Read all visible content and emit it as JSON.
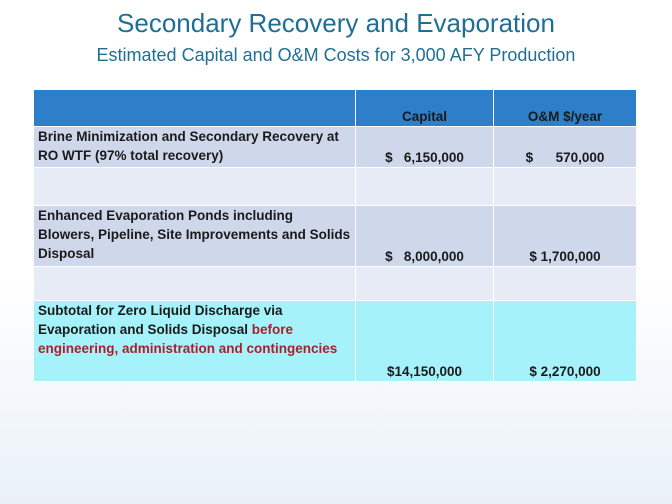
{
  "slide": {
    "title": "Secondary Recovery and Evaporation",
    "subtitle": "Estimated Capital and O&M Costs for 3,000 AFY Production"
  },
  "table": {
    "headers": [
      "",
      "Capital",
      "O&M $/year"
    ],
    "rows": [
      {
        "description": "Brine Minimization and Secondary Recovery at RO WTF (97% total recovery)",
        "capital": "$   6,150,000",
        "om": "$      570,000"
      },
      {
        "description": "",
        "capital": "",
        "om": ""
      },
      {
        "description": "Enhanced Evaporation Ponds including Blowers, Pipeline, Site Improvements and Solids Disposal",
        "capital": "$   8,000,000",
        "om": "$ 1,700,000"
      },
      {
        "description": "",
        "capital": "",
        "om": ""
      },
      {
        "description": "Subtotal for Zero Liquid Discharge  via Evaporation and Solids Disposal",
        "description_emphasis": " before engineering, administration and contingencies",
        "capital": "$14,150,000",
        "om": "$ 2,270,000"
      }
    ]
  },
  "colors": {
    "title": "#1f6f95",
    "header_bg": "#2e7fc9",
    "row_dark": "#cfd8ea",
    "row_light": "#e6ebf5",
    "subtotal_bg": "#a6f2fb",
    "emphasis_text": "#a4232b"
  }
}
